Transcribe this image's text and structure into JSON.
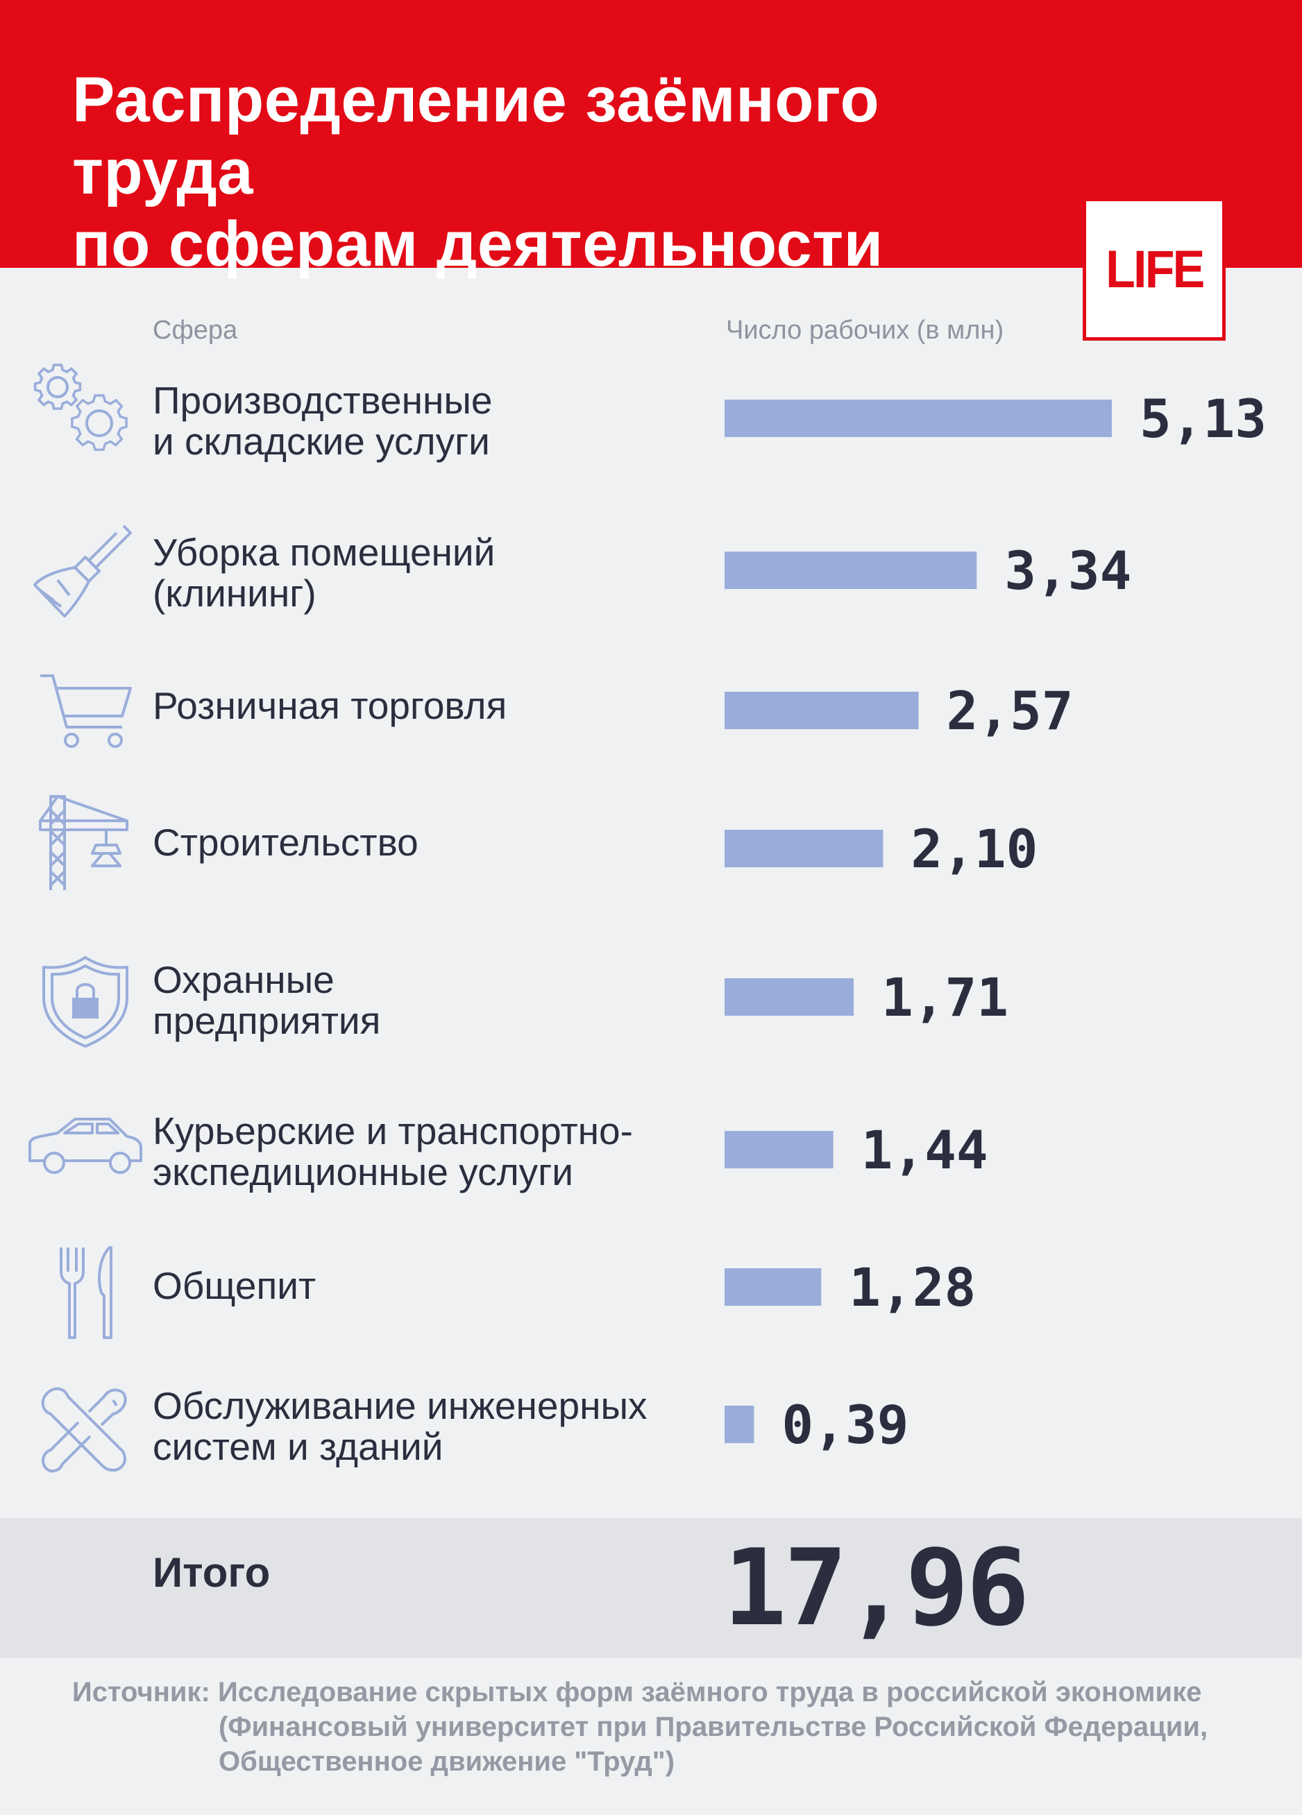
{
  "header": {
    "title_line1": "Распределение заёмного труда",
    "title_line2": "по сферам деятельности",
    "logo_text": "LIFE"
  },
  "columns": {
    "sphere": "Сфера",
    "workers": "Число рабочих (в млн)"
  },
  "chart_data": {
    "type": "bar",
    "orientation": "horizontal",
    "title": "Распределение заёмного труда по сферам деятельности",
    "xlabel": "Число рабочих (в млн)",
    "ylabel": "Сфера",
    "categories": [
      "Производственные\nи складские услуги",
      "Уборка помещений\n(клининг)",
      "Розничная торговля",
      "Строительство",
      "Охранные\nпредприятия",
      "Курьерские и транспортно-\nэкспедиционные услуги",
      "Общепит",
      "Обслуживание инженерных\nсистем и зданий"
    ],
    "values": [
      5.13,
      3.34,
      2.57,
      2.1,
      1.71,
      1.44,
      1.28,
      0.39
    ],
    "value_labels": [
      "5,13",
      "3,34",
      "2,57",
      "2,10",
      "1,71",
      "1,44",
      "1,28",
      "0,39"
    ],
    "xlim": [
      0,
      5.13
    ],
    "bar_color": "#9aadda",
    "icons": [
      "gears-icon",
      "broom-icon",
      "cart-icon",
      "crane-icon",
      "shield-lock-icon",
      "car-icon",
      "fork-knife-icon",
      "wrenches-icon"
    ]
  },
  "total": {
    "label": "Итого",
    "value": "17,96"
  },
  "source": {
    "label": "Источник:",
    "line1": "Исследование скрытых форм заёмного труда в российской экономике",
    "line2": "(Финансовый университет при Правительстве Российской Федерации,",
    "line3": "Общественное движение \"Труд\")"
  },
  "colors": {
    "header_red": "#e20a16",
    "background": "#eff1f3",
    "bar": "#9aadda",
    "icon": "#9aadda",
    "text_dark": "#2a2e3e",
    "total_band": "#e2e3e7"
  }
}
